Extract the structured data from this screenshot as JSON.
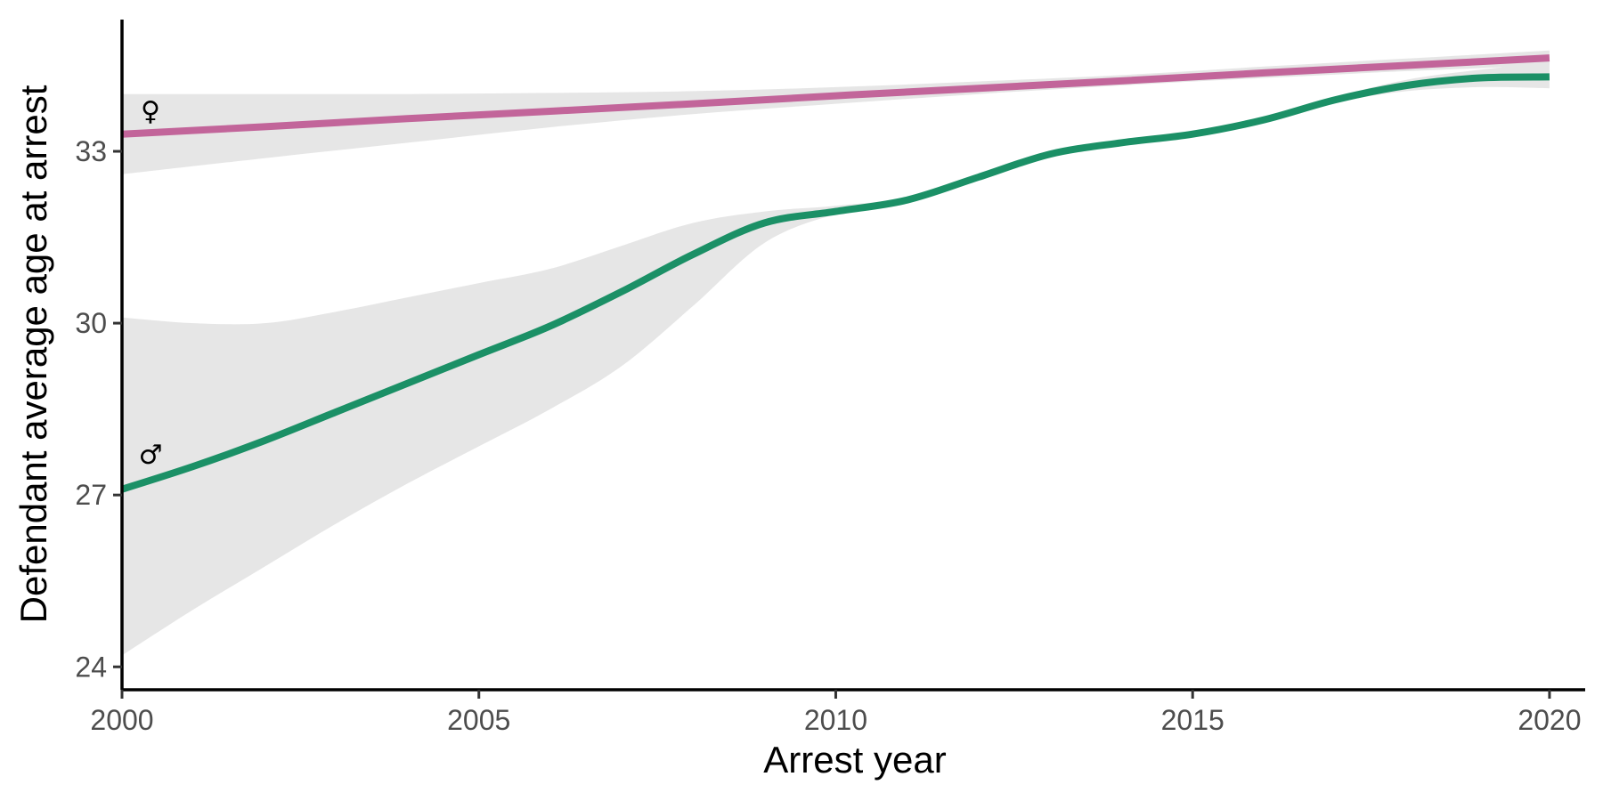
{
  "chart_data": {
    "type": "line",
    "title": "",
    "xlabel": "Arrest year",
    "ylabel": "Defendant average age at arrest",
    "xlim": [
      2000,
      20205
    ],
    "ylim": [
      23.6,
      35.3
    ],
    "x_ticks": [
      2000,
      2005,
      2010,
      2015,
      2020
    ],
    "y_ticks": [
      24,
      27,
      30,
      33
    ],
    "grid": false,
    "legend": "none",
    "annotations": [
      {
        "text": "♀",
        "x": 2000.3,
        "y": 33.7
      },
      {
        "text": "♂",
        "x": 2000.3,
        "y": 27.7
      }
    ],
    "series": [
      {
        "color": "#c2659a",
        "x": [
          2000,
          2002,
          2004,
          2006,
          2008,
          2010,
          2012,
          2014,
          2016,
          2018,
          2020
        ],
        "y": [
          33.3,
          33.43,
          33.57,
          33.7,
          33.83,
          33.97,
          34.1,
          34.23,
          34.37,
          34.5,
          34.63
        ],
        "ci_lower": [
          32.6,
          32.88,
          33.15,
          33.42,
          33.65,
          33.83,
          34.0,
          34.15,
          34.28,
          34.4,
          34.5
        ],
        "ci_upper": [
          34.0,
          34.0,
          34.0,
          34.02,
          34.05,
          34.12,
          34.22,
          34.33,
          34.48,
          34.62,
          34.76
        ]
      },
      {
        "color": "#1b9066",
        "x": [
          2000,
          2001,
          2002,
          2003,
          2004,
          2005,
          2006,
          2007,
          2008,
          2009,
          2010,
          2011,
          2012,
          2013,
          2014,
          2015,
          2016,
          2017,
          2018,
          2019,
          2020
        ],
        "y": [
          27.1,
          27.5,
          27.95,
          28.45,
          28.95,
          29.45,
          29.95,
          30.55,
          31.2,
          31.75,
          31.95,
          32.15,
          32.55,
          32.95,
          33.15,
          33.3,
          33.55,
          33.9,
          34.15,
          34.28,
          34.3
        ],
        "ci_lower": [
          24.2,
          25.0,
          25.75,
          26.5,
          27.2,
          27.85,
          28.5,
          29.25,
          30.3,
          31.4,
          31.9,
          32.1,
          32.5,
          32.9,
          33.1,
          33.25,
          33.5,
          33.85,
          34.05,
          34.12,
          34.1
        ],
        "ci_upper": [
          30.1,
          30.0,
          30.0,
          30.2,
          30.45,
          30.7,
          30.95,
          31.35,
          31.75,
          31.95,
          32.05,
          32.2,
          32.6,
          33.0,
          33.2,
          33.35,
          33.6,
          33.95,
          34.25,
          34.42,
          34.55
        ]
      }
    ]
  }
}
